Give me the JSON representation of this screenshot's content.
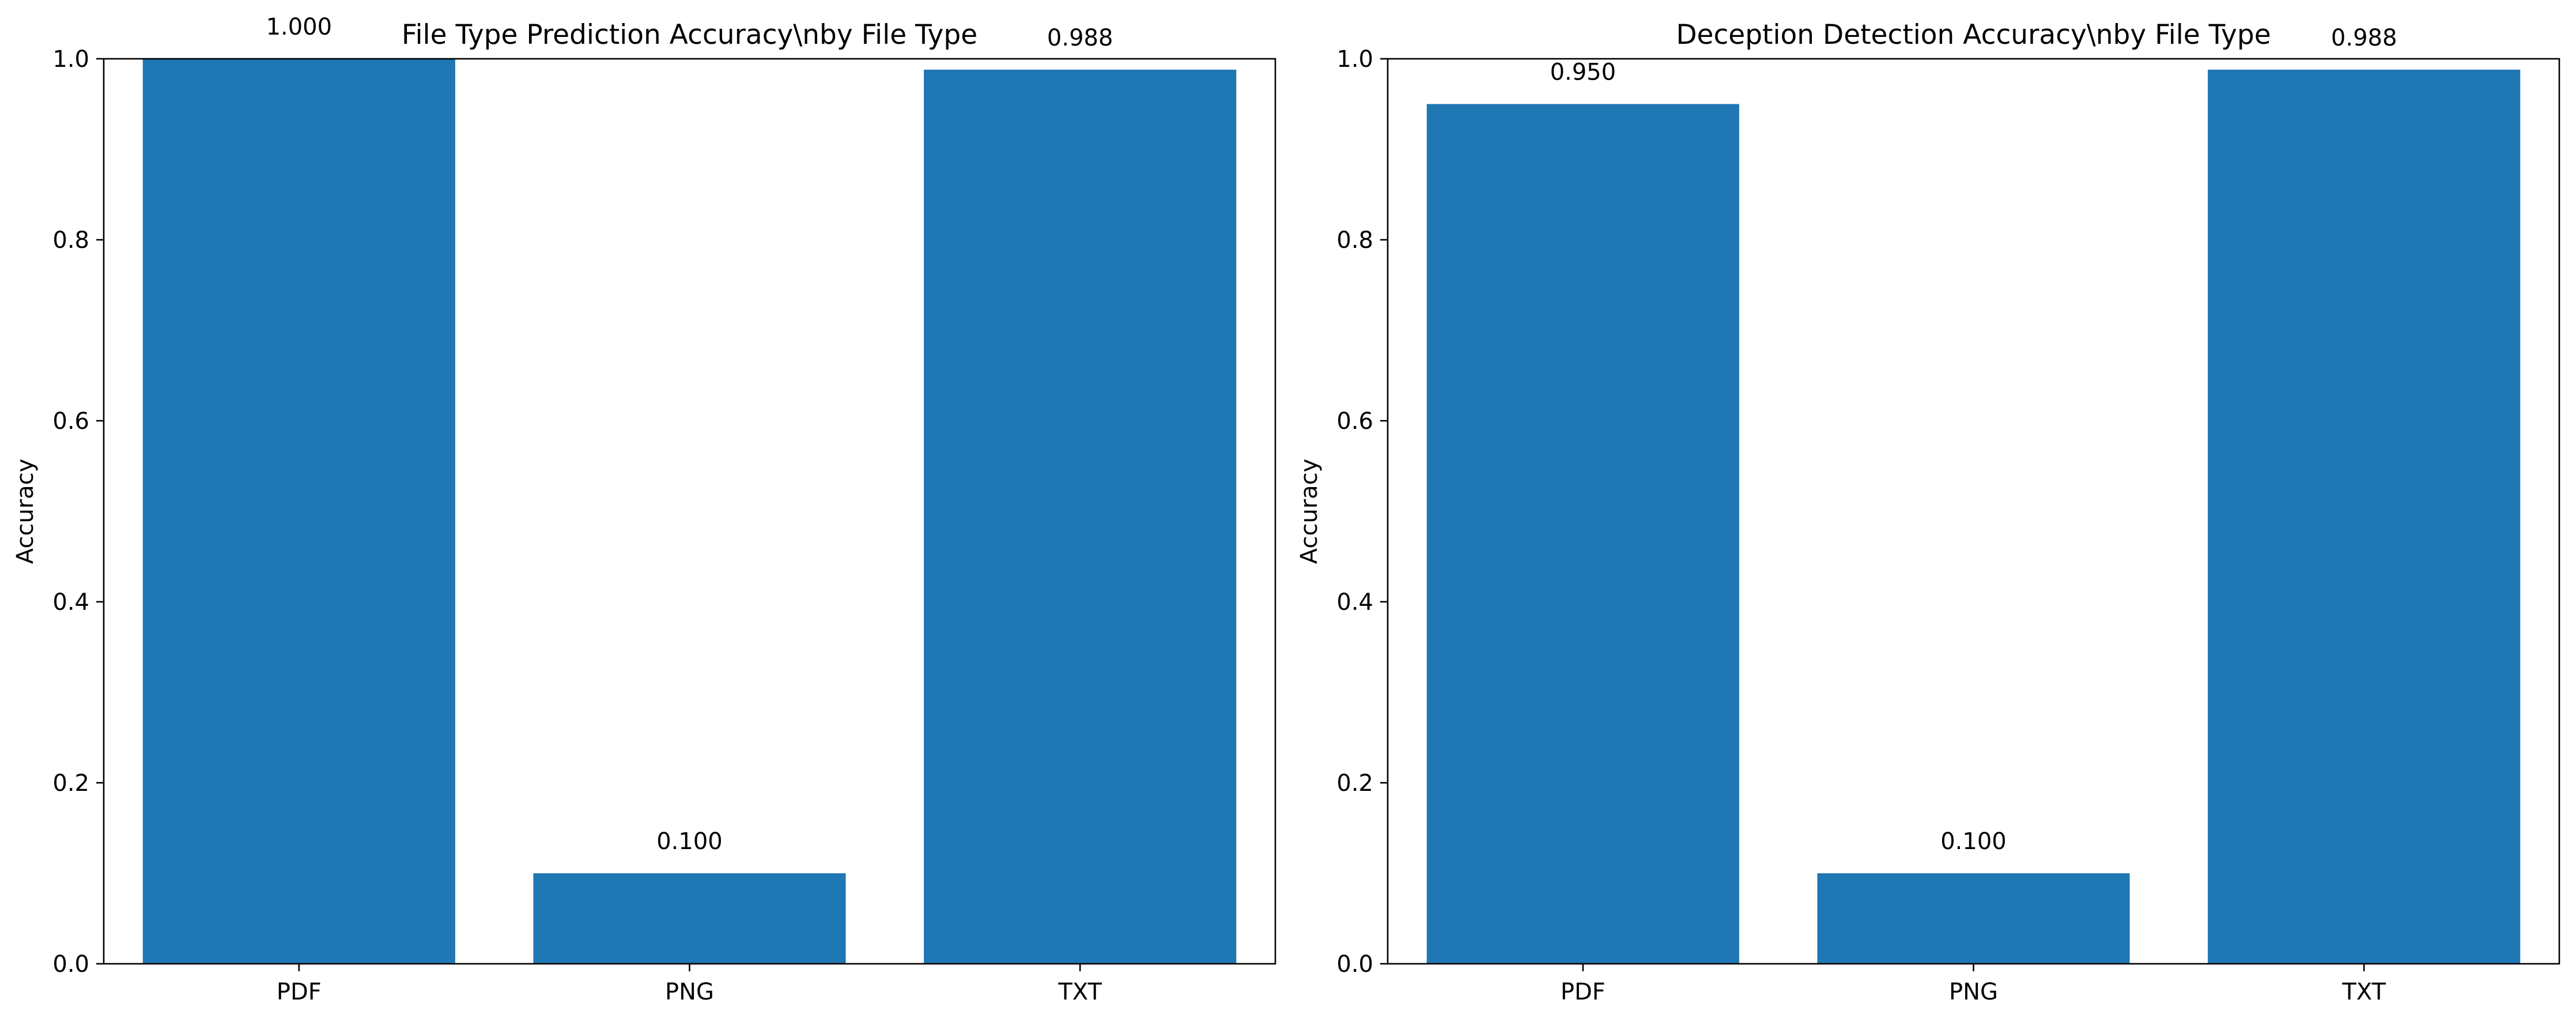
{
  "chart_data": [
    {
      "type": "bar",
      "title": "File Type Prediction Accuracy\\nby File Type",
      "xlabel": "",
      "ylabel": "Accuracy",
      "categories": [
        "PDF",
        "PNG",
        "TXT"
      ],
      "values": [
        1.0,
        0.1,
        0.988
      ],
      "value_labels": [
        "1.000",
        "0.100",
        "0.988"
      ],
      "ylim": [
        0,
        1.0
      ],
      "yticks": [
        0.0,
        0.2,
        0.4,
        0.6,
        0.8,
        1.0
      ],
      "ytick_labels": [
        "0.0",
        "0.2",
        "0.4",
        "0.6",
        "0.8",
        "1.0"
      ],
      "grid": false,
      "bar_color": "#1f77b4"
    },
    {
      "type": "bar",
      "title": "Deception Detection Accuracy\\nby File Type",
      "xlabel": "",
      "ylabel": "Accuracy",
      "categories": [
        "PDF",
        "PNG",
        "TXT"
      ],
      "values": [
        0.95,
        0.1,
        0.988
      ],
      "value_labels": [
        "0.950",
        "0.100",
        "0.988"
      ],
      "ylim": [
        0,
        1.0
      ],
      "yticks": [
        0.0,
        0.2,
        0.4,
        0.6,
        0.8,
        1.0
      ],
      "ytick_labels": [
        "0.0",
        "0.2",
        "0.4",
        "0.6",
        "0.8",
        "1.0"
      ],
      "grid": false,
      "bar_color": "#1f77b4"
    }
  ]
}
